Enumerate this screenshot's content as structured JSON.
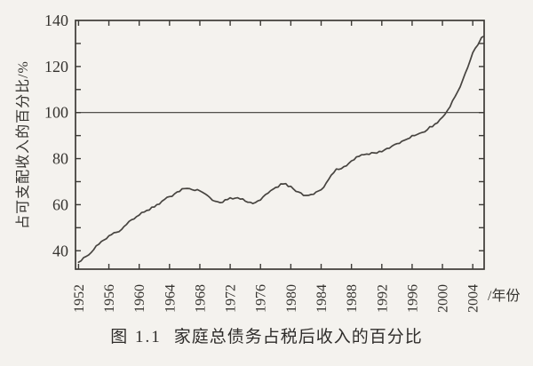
{
  "figure": {
    "caption_label": "图 1.1",
    "caption_title": "家庭总债务占税后收入的百分比"
  },
  "chart_data": {
    "type": "line",
    "title": "",
    "ylabel": "占可支配收入的百分比/%",
    "xlabel_unit": "/年份",
    "xlim": [
      1951.6,
      2005.5
    ],
    "ylim": [
      32,
      140
    ],
    "x_ticks": [
      1952,
      1956,
      1960,
      1964,
      1968,
      1972,
      1976,
      1980,
      1984,
      1988,
      1992,
      1996,
      2000,
      2004
    ],
    "y_ticks_labeled": [
      40,
      60,
      80,
      100,
      120,
      140
    ],
    "y_minor_step": 10,
    "reference_line_y": 100,
    "grid": false,
    "legend": false,
    "line_color": "#474440",
    "axis_color": "#3c3a36",
    "x": [
      1952,
      1953,
      1954,
      1955,
      1956,
      1957,
      1958,
      1959,
      1960,
      1961,
      1962,
      1963,
      1964,
      1965,
      1966,
      1967,
      1968,
      1969,
      1970,
      1971,
      1972,
      1973,
      1974,
      1975,
      1976,
      1977,
      1978,
      1979,
      1980,
      1981,
      1982,
      1983,
      1984,
      1985,
      1986,
      1987,
      1988,
      1989,
      1990,
      1991,
      1992,
      1993,
      1994,
      1995,
      1996,
      1997,
      1998,
      1999,
      2000,
      2001,
      2002,
      2003,
      2004,
      2005,
      2005.4
    ],
    "y": [
      35,
      37.5,
      40.5,
      44,
      46.5,
      48,
      50.5,
      53.5,
      55.5,
      57.5,
      59,
      61.5,
      63.5,
      65.5,
      67,
      66.5,
      66,
      64,
      61.5,
      61,
      63,
      63,
      61.5,
      60.5,
      62,
      65,
      67.5,
      69,
      68,
      65.5,
      64,
      64.5,
      66.5,
      71,
      75.5,
      76.5,
      79,
      81,
      82,
      82.5,
      83,
      84.5,
      86.5,
      88,
      90,
      91,
      92.5,
      95,
      98,
      102.5,
      109,
      117,
      126,
      131.5,
      133
    ]
  },
  "colors": {
    "paper": "#f4f2ee",
    "ink": "#35332f"
  }
}
